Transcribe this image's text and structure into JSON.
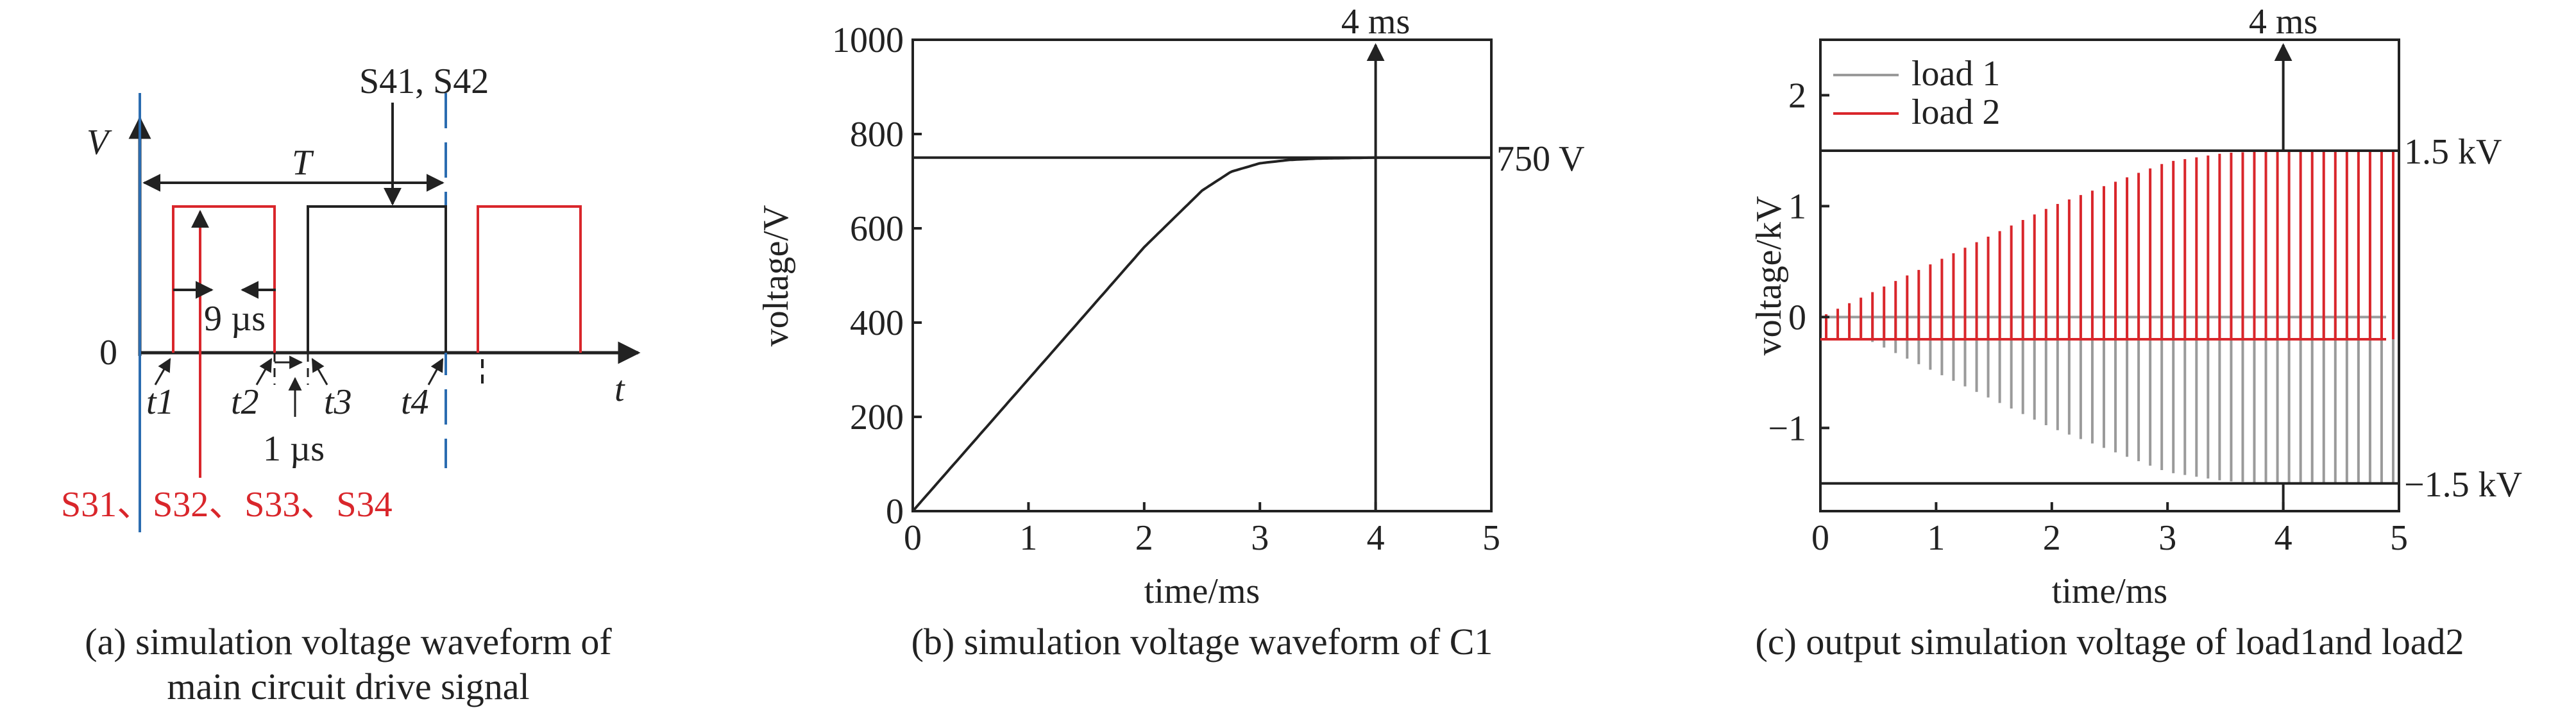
{
  "colors": {
    "axis": "#222222",
    "red": "#d9262b",
    "blue": "#2b6cb0",
    "gray": "#9a9a9a"
  },
  "panel_a": {
    "caption_line1": "(a) simulation voltage waveform of",
    "caption_line2": "main circuit drive signal",
    "v_label": "V",
    "t_label": "t",
    "zero_label": "0",
    "T_label": "T",
    "s41_label": "S41, S42",
    "dt9_label": "9 µs",
    "dt1_label": "1 µs",
    "t1_label": "t1",
    "t2_label": "t2",
    "t3_label": "t3",
    "t4_label": "t4",
    "s3_label": "S31、S32、S33、S34"
  },
  "chart_data": [
    {
      "type": "line",
      "title": "(b) simulation voltage waveform of C1",
      "xlabel": "time/ms",
      "ylabel": "voltage/V",
      "xlim": [
        0,
        5
      ],
      "ylim": [
        0,
        1000
      ],
      "xticks": [
        0,
        1,
        2,
        3,
        4,
        5
      ],
      "yticks": [
        0,
        200,
        400,
        600,
        800,
        1000
      ],
      "x": [
        0,
        0.5,
        1,
        1.5,
        2,
        2.5,
        2.75,
        3,
        3.25,
        3.5,
        3.75,
        4,
        4.5,
        5
      ],
      "y": [
        0,
        140,
        280,
        420,
        560,
        680,
        720,
        738,
        745,
        748,
        749,
        750,
        750,
        750
      ],
      "reference_line": {
        "value": 750,
        "label": "750 V"
      },
      "marker": {
        "x": 4,
        "label": "4 ms"
      },
      "grid": false
    },
    {
      "type": "line",
      "title": "(c) output simulation voltage of load1and load2",
      "xlabel": "time/ms",
      "ylabel": "voltage/kV",
      "xlim": [
        0,
        5
      ],
      "ylim": [
        -1.75,
        2.5
      ],
      "xticks": [
        0,
        1,
        2,
        3,
        4,
        5
      ],
      "yticks": [
        -1,
        0,
        1,
        2
      ],
      "legend_position": "top-left",
      "series": [
        {
          "name": "load 1",
          "color": "#9a9a9a",
          "envelope_x": [
            0,
            1,
            2,
            3,
            3.5,
            4,
            5
          ],
          "envelope_y": [
            0,
            -0.5,
            -1.0,
            -1.4,
            -1.48,
            -1.5,
            -1.5
          ],
          "baseline": 0
        },
        {
          "name": "load 2",
          "color": "#d9262b",
          "envelope_x": [
            0,
            1,
            2,
            3,
            3.5,
            4,
            5
          ],
          "envelope_y": [
            0,
            0.5,
            1.0,
            1.4,
            1.48,
            1.5,
            1.5
          ],
          "baseline": -0.2
        }
      ],
      "reference_lines": [
        {
          "value": 1.5,
          "label": "1.5 kV"
        },
        {
          "value": -1.5,
          "label": "−1.5 kV"
        }
      ],
      "marker": {
        "x": 4,
        "label": "4 ms"
      },
      "grid": false
    }
  ]
}
